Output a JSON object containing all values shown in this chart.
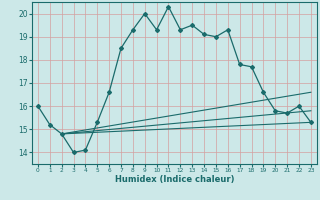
{
  "xlabel": "Humidex (Indice chaleur)",
  "bg_color": "#cce8e8",
  "grid_color": "#d4a0a0",
  "line_color": "#1a6b6b",
  "x_ticks": [
    0,
    1,
    2,
    3,
    4,
    5,
    6,
    7,
    8,
    9,
    10,
    11,
    12,
    13,
    14,
    15,
    16,
    17,
    18,
    19,
    20,
    21,
    22,
    23
  ],
  "ylim": [
    13.5,
    20.5
  ],
  "xlim": [
    -0.5,
    23.5
  ],
  "yticks": [
    14,
    15,
    16,
    17,
    18,
    19,
    20
  ],
  "main_line": {
    "x": [
      0,
      1,
      2,
      3,
      4,
      5,
      6,
      7,
      8,
      9,
      10,
      11,
      12,
      13,
      14,
      15,
      16,
      17,
      18,
      19,
      20,
      21,
      22,
      23
    ],
    "y": [
      16.0,
      15.2,
      14.8,
      14.0,
      14.1,
      15.3,
      16.6,
      18.5,
      19.3,
      20.0,
      19.3,
      20.3,
      19.3,
      19.5,
      19.1,
      19.0,
      19.3,
      17.8,
      17.7,
      16.6,
      15.8,
      15.7,
      16.0,
      15.3
    ]
  },
  "linear_lines": [
    {
      "x": [
        2,
        23
      ],
      "y": [
        14.8,
        15.3
      ]
    },
    {
      "x": [
        2,
        23
      ],
      "y": [
        14.8,
        15.8
      ]
    },
    {
      "x": [
        2,
        23
      ],
      "y": [
        14.8,
        16.6
      ]
    }
  ]
}
